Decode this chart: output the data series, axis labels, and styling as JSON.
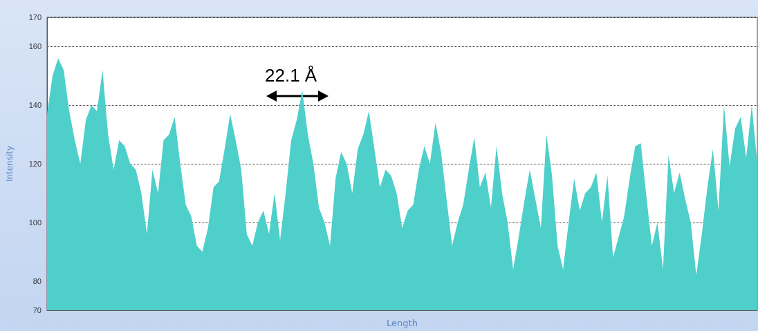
{
  "chart_data": {
    "type": "area",
    "xlabel": "Length",
    "ylabel": "Intensity",
    "color": "#4ecfca",
    "ylim": [
      70,
      170
    ],
    "yticks": [
      70,
      80,
      100,
      120,
      140,
      160,
      170
    ],
    "grid": "y",
    "tick_labels": "y",
    "annotations": [
      "22.1 Å"
    ],
    "values": [
      137,
      150,
      156,
      152,
      138,
      128,
      120,
      135,
      140,
      138,
      152,
      130,
      118,
      128,
      126,
      120,
      118,
      110,
      96,
      118,
      110,
      128,
      130,
      136,
      120,
      106,
      102,
      92,
      90,
      98,
      112,
      114,
      125,
      137,
      128,
      118,
      96,
      92,
      100,
      104,
      96,
      110,
      94,
      110,
      128,
      135,
      145,
      130,
      120,
      105,
      100,
      92,
      115,
      124,
      120,
      110,
      125,
      130,
      138,
      125,
      112,
      118,
      116,
      110,
      98,
      104,
      106,
      118,
      126,
      120,
      134,
      124,
      108,
      92,
      100,
      106,
      118,
      129,
      112,
      117,
      105,
      126,
      110,
      100,
      84,
      95,
      107,
      118,
      108,
      98,
      130,
      116,
      92,
      84,
      100,
      115,
      104,
      110,
      112,
      117,
      100,
      116,
      88,
      95,
      102,
      115,
      126,
      127,
      109,
      92,
      100,
      84,
      123,
      110,
      117,
      108,
      100,
      82,
      96,
      112,
      125,
      104,
      140,
      119,
      132,
      136,
      122,
      140,
      120
    ],
    "categories": [
      null,
      null,
      null,
      null,
      null,
      null,
      null,
      null,
      null,
      null,
      null,
      null,
      null,
      null,
      null,
      null,
      null,
      null,
      null,
      null,
      null,
      null,
      null,
      null,
      null,
      null,
      null,
      null,
      null,
      null,
      null,
      null,
      null,
      null,
      null,
      null,
      null,
      null,
      null,
      null,
      null,
      null,
      null,
      null,
      null,
      null,
      null,
      null,
      null,
      null,
      null,
      null,
      null,
      null,
      null,
      null,
      null,
      null,
      null,
      null,
      null,
      null,
      null,
      null,
      null,
      null,
      null,
      null,
      null,
      null,
      null,
      null,
      null,
      null,
      null,
      null,
      null,
      null,
      null,
      null,
      null,
      null,
      null,
      null,
      null,
      null,
      null,
      null,
      null,
      null,
      null,
      null,
      null,
      null,
      null,
      null,
      null,
      null,
      null,
      null,
      null,
      null,
      null,
      null,
      null,
      null,
      null,
      null,
      null,
      null,
      null,
      null,
      null,
      null,
      null,
      null,
      null,
      null,
      null,
      null,
      null,
      null,
      null,
      null,
      null,
      null,
      null,
      null,
      null
    ]
  }
}
